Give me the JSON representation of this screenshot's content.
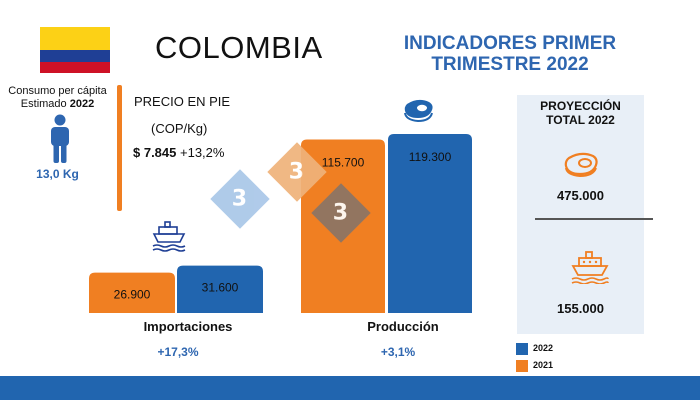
{
  "header": {
    "country": "COLOMBIA",
    "report_title_line1": "INDICADORES PRIMER",
    "report_title_line2": "TRIMESTRE 2022"
  },
  "consumption": {
    "label_line1": "Consumo per cápita",
    "label_line2_text": "Estimado ",
    "label_line2_year": "2022",
    "value": "13,0 Kg",
    "icon": "person-icon"
  },
  "price": {
    "title": "PRECIO EN PIE",
    "unit": "(COP/Kg)",
    "value": "$ 7.845",
    "change": "+13,2%"
  },
  "chart_data": {
    "type": "bar",
    "title": "",
    "categories": [
      "Importaciones",
      "Producción"
    ],
    "series": [
      {
        "name": "2021",
        "values": [
          26900,
          115700
        ],
        "labels": [
          "26.900",
          "115.700"
        ],
        "color": "#F07F22"
      },
      {
        "name": "2022",
        "values": [
          31600,
          119300
        ],
        "labels": [
          "31.600",
          "119.300"
        ],
        "color": "#2165AF"
      }
    ],
    "category_changes": [
      "+17,3%",
      "+3,1%"
    ],
    "category_icons": [
      "ship-icon",
      "meat-icon"
    ],
    "legend": "bottom-right",
    "grid": false
  },
  "projection": {
    "title_line1": "PROYECCIÓN",
    "title_line2": "TOTAL 2022",
    "items": [
      {
        "icon": "meat-icon",
        "value": "475.000"
      },
      {
        "icon": "ship-icon",
        "value": "155.000"
      }
    ]
  },
  "legend": {
    "label_2022": "2022",
    "label_2021": "2021"
  },
  "watermark": {
    "text": [
      "3",
      "3",
      "3"
    ]
  },
  "colors": {
    "orange": "#F07F22",
    "blue": "#2165AF",
    "title_blue": "#2E66B0",
    "panel": "#E8EFF7",
    "flag_yellow": "#FCD116",
    "flag_blue": "#1F3F95",
    "flag_red": "#CE1126"
  }
}
